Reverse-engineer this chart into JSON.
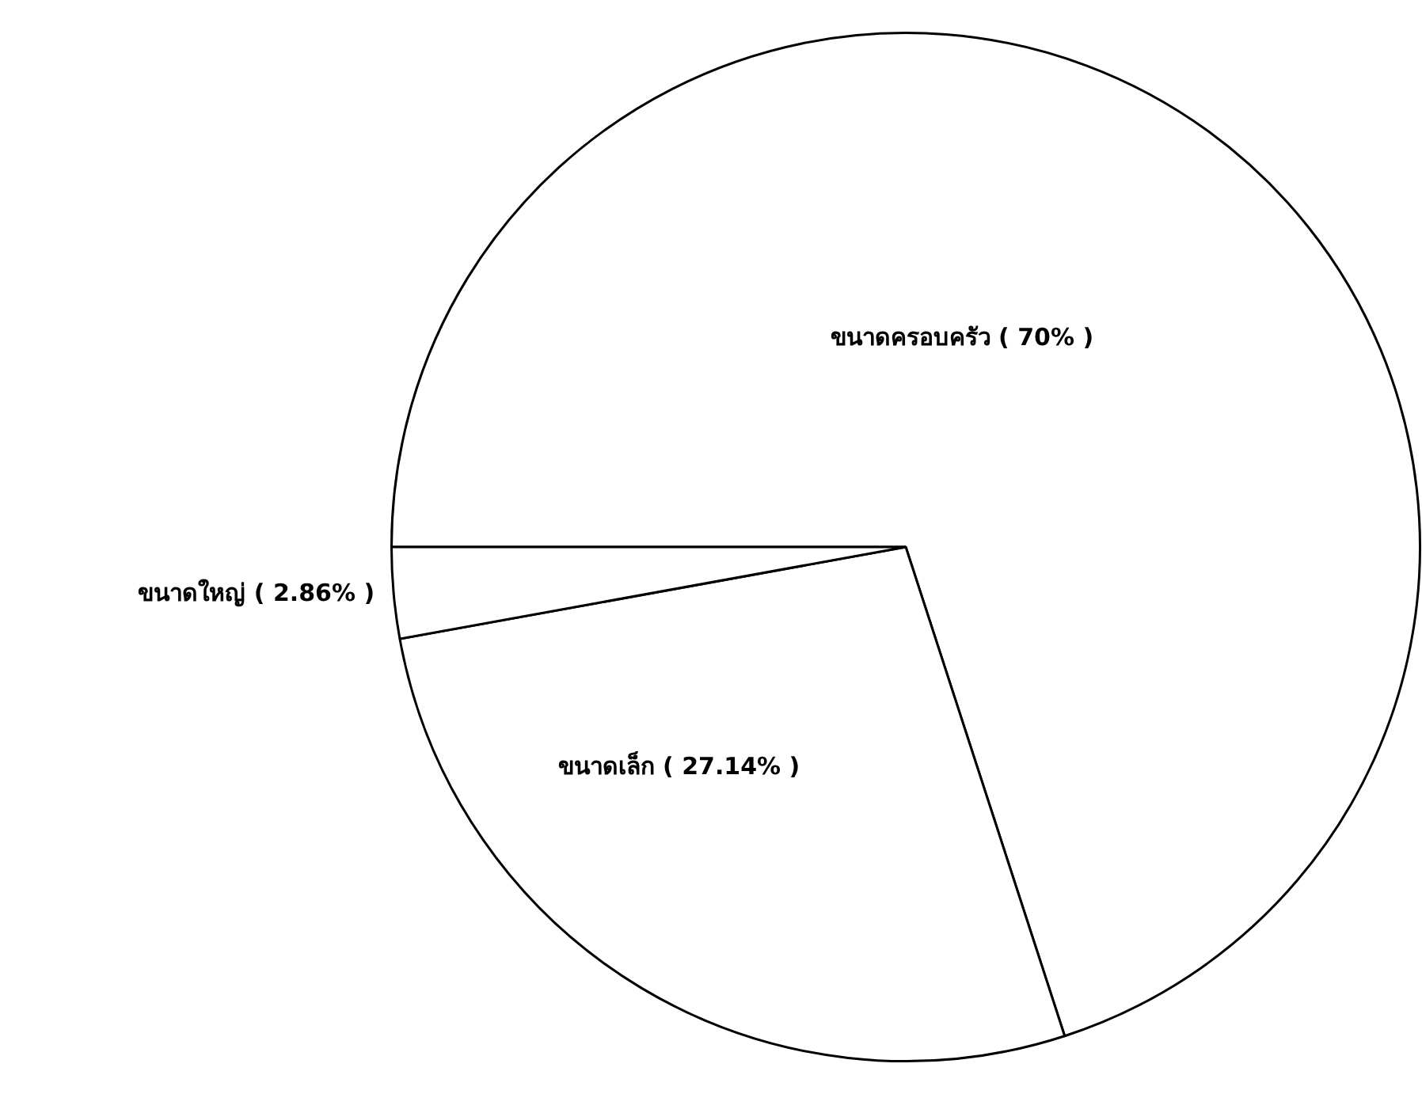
{
  "chart_data": {
    "type": "pie",
    "categories": [
      "ขนาดครอบครัว",
      "ขนาดเล็ก",
      "ขนาดใหญ่"
    ],
    "values": [
      70,
      27.14,
      2.86
    ],
    "value_labels": [
      "( 70% )",
      "( 27.14% )",
      "( 2.86% )"
    ],
    "colors": [
      "#ffffff",
      "#ffffff",
      "#ffffff"
    ],
    "legend": false
  }
}
